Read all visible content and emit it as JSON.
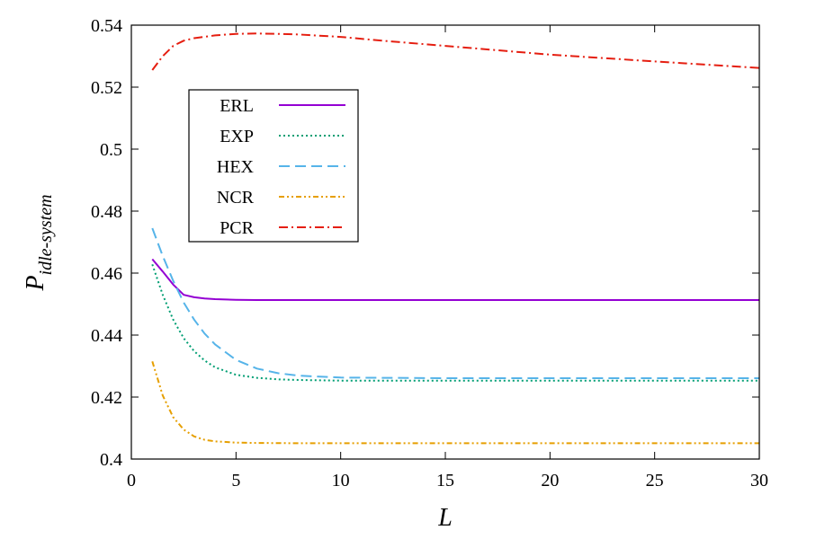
{
  "chart_data": {
    "type": "line",
    "xlabel": "L",
    "ylabel": {
      "main": "P",
      "sub": "idle-system"
    },
    "xlim": [
      0,
      30
    ],
    "ylim": [
      0.4,
      0.54
    ],
    "xticks": [
      0,
      5,
      10,
      15,
      20,
      25,
      30
    ],
    "yticks": [
      0.4,
      0.42,
      0.44,
      0.46,
      0.48,
      0.5,
      0.52,
      0.54
    ],
    "ytick_labels": [
      "0.4",
      "0.42",
      "0.44",
      "0.46",
      "0.48",
      "0.5",
      "0.52",
      "0.54"
    ],
    "grid": false,
    "legend_position": "top-left",
    "series": [
      {
        "name": "ERL",
        "color": "#9400d3",
        "dash": "solid",
        "x": [
          1,
          1.5,
          2,
          2.5,
          3,
          3.5,
          4,
          5,
          6,
          8,
          10,
          15,
          20,
          25,
          30
        ],
        "y": [
          0.4645,
          0.4605,
          0.4563,
          0.453,
          0.4522,
          0.4518,
          0.4516,
          0.4514,
          0.4513,
          0.4513,
          0.4513,
          0.4513,
          0.4513,
          0.4513,
          0.4513
        ]
      },
      {
        "name": "EXP",
        "color": "#009e73",
        "dash": "dotted",
        "x": [
          1,
          1.5,
          2,
          2.5,
          3,
          3.5,
          4,
          5,
          6,
          7,
          8,
          10,
          15,
          20,
          25,
          30
        ],
        "y": [
          0.4628,
          0.453,
          0.445,
          0.439,
          0.4348,
          0.4318,
          0.4296,
          0.4272,
          0.4262,
          0.4257,
          0.4255,
          0.4253,
          0.4253,
          0.4253,
          0.4253,
          0.4253
        ]
      },
      {
        "name": "HEX",
        "color": "#56b4e9",
        "dash": "dashed",
        "x": [
          1,
          1.5,
          2,
          2.5,
          3,
          3.5,
          4,
          5,
          6,
          7,
          8,
          10,
          15,
          20,
          25,
          30
        ],
        "y": [
          0.4745,
          0.4655,
          0.4575,
          0.4505,
          0.445,
          0.4405,
          0.437,
          0.432,
          0.4292,
          0.4277,
          0.4269,
          0.4263,
          0.4261,
          0.4261,
          0.4261,
          0.4261
        ]
      },
      {
        "name": "NCR",
        "color": "#e69f00",
        "dash": "dashdotdot",
        "x": [
          1,
          1.5,
          2,
          2.5,
          3,
          3.5,
          4,
          5,
          6,
          8,
          10,
          15,
          20,
          25,
          30
        ],
        "y": [
          0.4315,
          0.4205,
          0.4135,
          0.4095,
          0.4073,
          0.4062,
          0.4057,
          0.4053,
          0.4052,
          0.4051,
          0.4051,
          0.4051,
          0.4051,
          0.4051,
          0.4051
        ]
      },
      {
        "name": "PCR",
        "color": "#e51e10",
        "dash": "dashdot",
        "x": [
          1,
          1.5,
          2,
          2.5,
          3,
          4,
          5,
          6,
          7,
          8,
          10,
          12,
          15,
          20,
          25,
          30
        ],
        "y": [
          0.5255,
          0.53,
          0.5333,
          0.535,
          0.5358,
          0.5367,
          0.5372,
          0.5373,
          0.5372,
          0.537,
          0.5362,
          0.535,
          0.5333,
          0.5305,
          0.5283,
          0.5262
        ]
      }
    ]
  }
}
